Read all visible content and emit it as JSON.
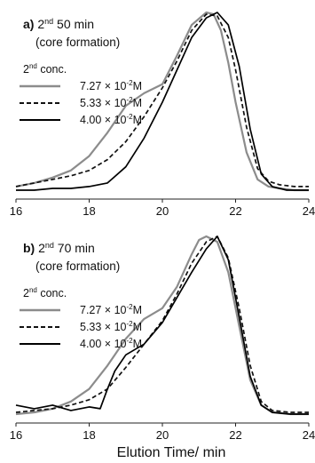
{
  "chart_data": [
    {
      "type": "line",
      "panel_label": "a)",
      "title_ord": "2",
      "title_sup": "nd",
      "title_rest": " 50 min",
      "subtitle": "(core formation)",
      "legend_title_ord": "2",
      "legend_title_sup": "nd",
      "legend_title_rest": " conc.",
      "legend_placement": "left",
      "xlim": [
        16,
        24
      ],
      "ylim": [
        0,
        1
      ],
      "xticks": [
        "16",
        "18",
        "20",
        "22",
        "24"
      ],
      "grid": false,
      "series": [
        {
          "name": "7.27 × 10",
          "name_exp": "-2",
          "name_unit": "M",
          "color": "#8c8c8c",
          "dash": "solid",
          "x": [
            16.0,
            16.5,
            17.0,
            17.5,
            18.0,
            18.5,
            19.0,
            19.5,
            20.0,
            20.4,
            20.8,
            21.2,
            21.4,
            21.6,
            21.8,
            22.0,
            22.3,
            22.6,
            22.9,
            23.2,
            23.6,
            24.0
          ],
          "y": [
            0.03,
            0.05,
            0.08,
            0.12,
            0.2,
            0.33,
            0.48,
            0.55,
            0.6,
            0.76,
            0.93,
            1.0,
            0.99,
            0.9,
            0.72,
            0.5,
            0.22,
            0.07,
            0.03,
            0.02,
            0.01,
            0.01
          ]
        },
        {
          "name": "5.33 × 10",
          "name_exp": "-2",
          "name_unit": "M",
          "color": "#111111",
          "dash": "dashed",
          "x": [
            16.0,
            16.5,
            17.0,
            17.5,
            18.0,
            18.5,
            19.0,
            19.5,
            20.0,
            20.4,
            20.8,
            21.2,
            21.5,
            21.8,
            22.0,
            22.3,
            22.6,
            22.9,
            23.2,
            23.6,
            24.0
          ],
          "y": [
            0.03,
            0.05,
            0.07,
            0.09,
            0.12,
            0.18,
            0.28,
            0.42,
            0.58,
            0.73,
            0.9,
            0.99,
            0.98,
            0.86,
            0.68,
            0.36,
            0.13,
            0.06,
            0.04,
            0.03,
            0.03
          ]
        },
        {
          "name": "4.00 × 10",
          "name_exp": "-2",
          "name_unit": "M",
          "color": "#000000",
          "dash": "solid",
          "x": [
            16.0,
            16.5,
            17.0,
            17.5,
            18.0,
            18.5,
            19.0,
            19.5,
            20.0,
            20.4,
            20.8,
            21.2,
            21.5,
            21.8,
            22.1,
            22.4,
            22.7,
            23.0,
            23.4,
            24.0
          ],
          "y": [
            0.01,
            0.01,
            0.02,
            0.02,
            0.03,
            0.05,
            0.14,
            0.3,
            0.5,
            0.68,
            0.86,
            0.97,
            1.0,
            0.93,
            0.7,
            0.35,
            0.1,
            0.03,
            0.01,
            0.01
          ]
        }
      ]
    },
    {
      "type": "line",
      "panel_label": "b)",
      "title_ord": "2",
      "title_sup": "nd",
      "title_rest": " 70 min",
      "subtitle": "(core formation)",
      "legend_title_ord": "2",
      "legend_title_sup": "nd",
      "legend_title_rest": " conc.",
      "legend_placement": "left",
      "xlim": [
        16,
        24
      ],
      "ylim": [
        0,
        1
      ],
      "xticks": [
        "16",
        "18",
        "20",
        "22",
        "24"
      ],
      "xlabel": "Elution Time/ min",
      "grid": false,
      "series": [
        {
          "name": "7.27 × 10",
          "name_exp": "-2",
          "name_unit": "M",
          "color": "#8c8c8c",
          "dash": "solid",
          "x": [
            16.0,
            16.5,
            17.0,
            17.5,
            18.0,
            18.5,
            19.0,
            19.5,
            20.0,
            20.4,
            20.8,
            21.0,
            21.2,
            21.5,
            21.8,
            22.1,
            22.4,
            22.7,
            23.0,
            23.5,
            24.0
          ],
          "y": [
            0.01,
            0.02,
            0.04,
            0.08,
            0.15,
            0.28,
            0.43,
            0.54,
            0.6,
            0.72,
            0.9,
            0.98,
            1.0,
            0.97,
            0.8,
            0.5,
            0.2,
            0.06,
            0.02,
            0.01,
            0.01
          ]
        },
        {
          "name": "5.33 × 10",
          "name_exp": "-2",
          "name_unit": "M",
          "color": "#111111",
          "dash": "dashed",
          "x": [
            16.0,
            16.5,
            17.0,
            17.5,
            18.0,
            18.5,
            19.0,
            19.5,
            20.0,
            20.4,
            20.8,
            21.2,
            21.5,
            21.8,
            22.1,
            22.4,
            22.7,
            23.0,
            23.5,
            24.0
          ],
          "y": [
            0.02,
            0.03,
            0.04,
            0.06,
            0.09,
            0.15,
            0.27,
            0.4,
            0.53,
            0.68,
            0.85,
            0.97,
            1.0,
            0.88,
            0.6,
            0.28,
            0.08,
            0.03,
            0.02,
            0.02
          ]
        },
        {
          "name": "4.00 × 10",
          "name_exp": "-2",
          "name_unit": "M",
          "color": "#000000",
          "dash": "solid",
          "x": [
            16.0,
            16.5,
            17.0,
            17.5,
            18.0,
            18.3,
            18.5,
            18.7,
            19.0,
            19.5,
            20.0,
            20.4,
            20.8,
            21.2,
            21.5,
            21.8,
            22.1,
            22.4,
            22.7,
            23.0,
            23.5,
            24.0
          ],
          "y": [
            0.06,
            0.04,
            0.06,
            0.03,
            0.05,
            0.04,
            0.15,
            0.25,
            0.34,
            0.4,
            0.52,
            0.66,
            0.8,
            0.93,
            1.0,
            0.87,
            0.55,
            0.22,
            0.06,
            0.02,
            0.01,
            0.01
          ]
        }
      ]
    }
  ]
}
